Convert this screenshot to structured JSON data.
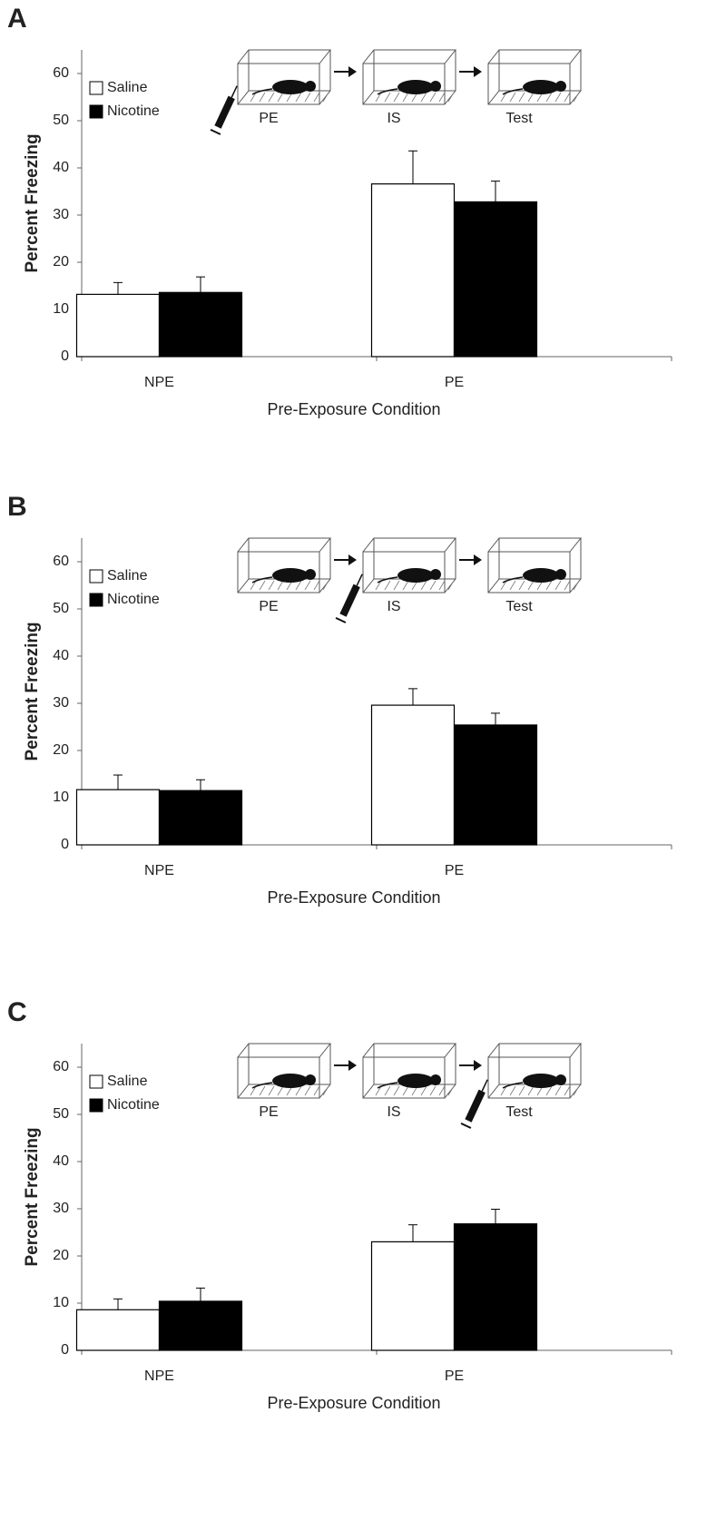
{
  "chart_data": [
    {
      "type": "bar",
      "panel": "A",
      "y_label": "Percent Freezing",
      "x_label": "Pre-Exposure Condition",
      "diagram_labels": [
        "PE",
        "IS",
        "Test"
      ],
      "categories": [
        "NPE",
        "PE"
      ],
      "series": [
        {
          "name": "Saline",
          "color": "#ffffff",
          "values": [
            13.2,
            36.6
          ],
          "errors": [
            2.5,
            7.0
          ]
        },
        {
          "name": "Nicotine",
          "color": "#000000",
          "values": [
            13.6,
            32.8
          ],
          "errors": [
            3.3,
            4.4
          ]
        }
      ],
      "ylim": [
        0,
        65
      ],
      "yticks": [
        0,
        10,
        20,
        30,
        40,
        50,
        60
      ]
    },
    {
      "type": "bar",
      "panel": "B",
      "y_label": "Percent Freezing",
      "x_label": "Pre-Exposure Condition",
      "diagram_labels": [
        "PE",
        "IS",
        "Test"
      ],
      "categories": [
        "NPE",
        "PE"
      ],
      "series": [
        {
          "name": "Saline",
          "color": "#ffffff",
          "values": [
            11.7,
            29.6
          ],
          "errors": [
            3.1,
            3.5
          ]
        },
        {
          "name": "Nicotine",
          "color": "#000000",
          "values": [
            11.5,
            25.4
          ],
          "errors": [
            2.3,
            2.5
          ]
        }
      ],
      "ylim": [
        0,
        65
      ],
      "yticks": [
        0,
        10,
        20,
        30,
        40,
        50,
        60
      ]
    },
    {
      "type": "bar",
      "panel": "C",
      "y_label": "Percent Freezing",
      "x_label": "Pre-Exposure Condition",
      "diagram_labels": [
        "PE",
        "IS",
        "Test"
      ],
      "categories": [
        "NPE",
        "PE"
      ],
      "series": [
        {
          "name": "Saline",
          "color": "#ffffff",
          "values": [
            8.6,
            23.0
          ],
          "errors": [
            2.3,
            3.6
          ]
        },
        {
          "name": "Nicotine",
          "color": "#000000",
          "values": [
            10.4,
            26.8
          ],
          "errors": [
            2.8,
            3.1
          ]
        }
      ],
      "ylim": [
        0,
        65
      ],
      "yticks": [
        0,
        10,
        20,
        30,
        40,
        50,
        60
      ]
    }
  ]
}
